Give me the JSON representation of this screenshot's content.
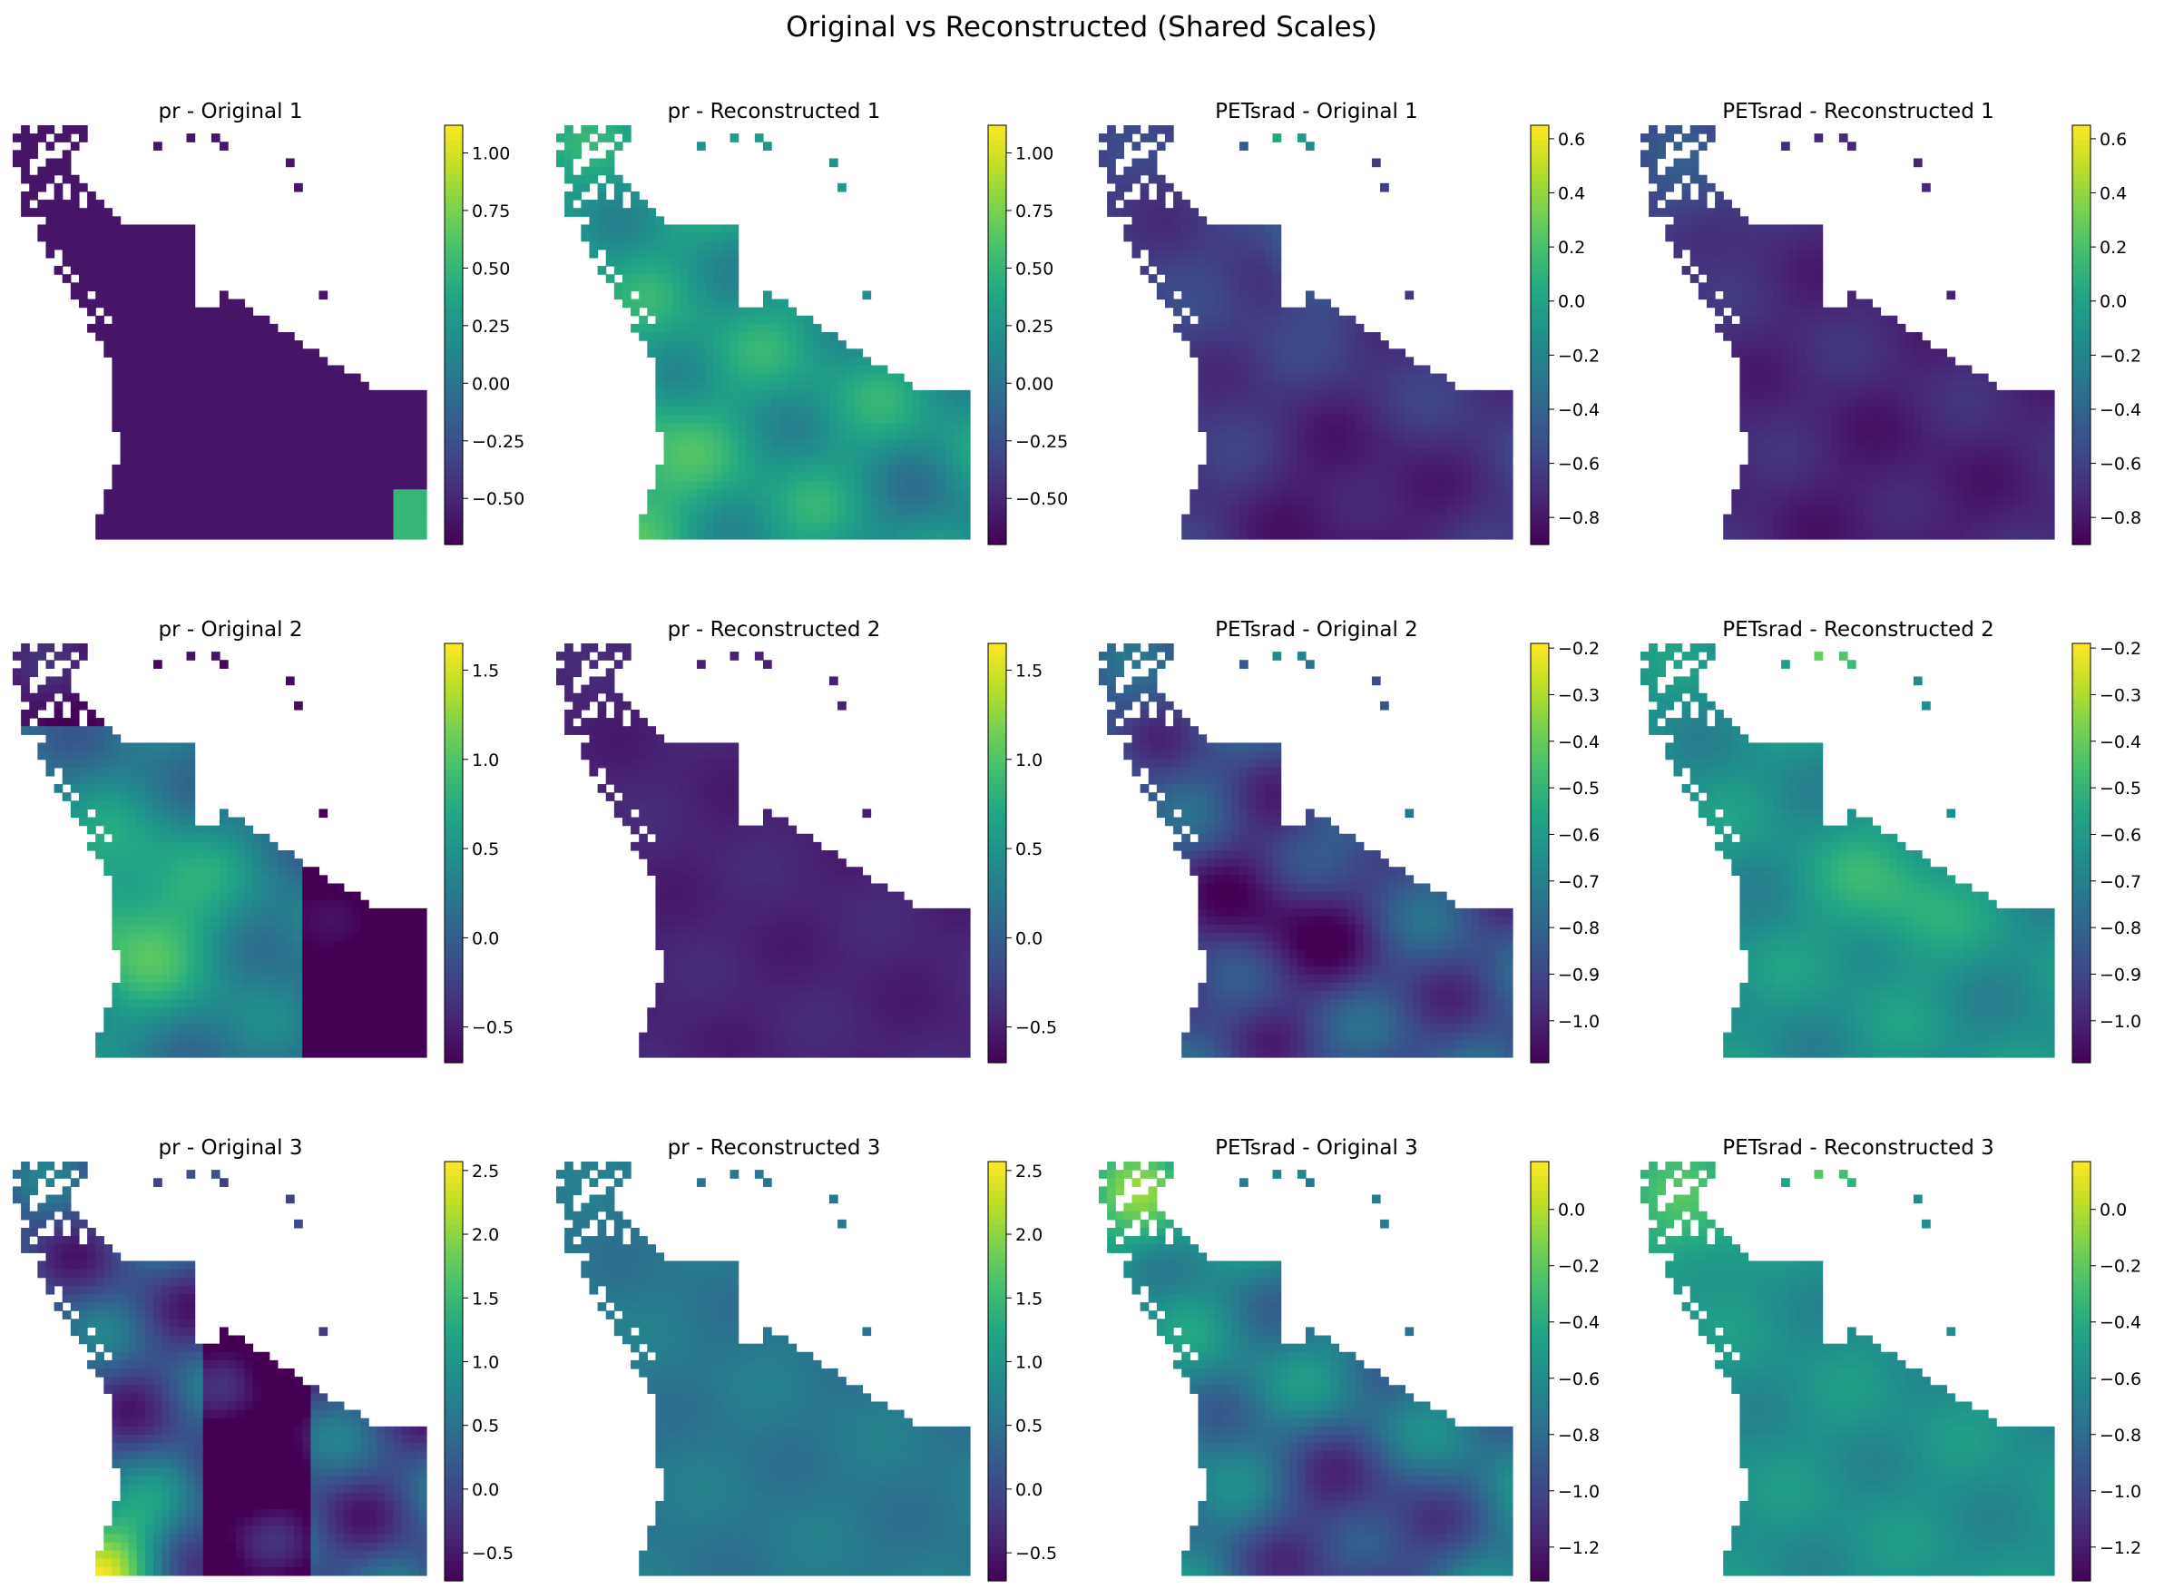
{
  "figure": {
    "suptitle": "Original vs Reconstructed (Shared Scales)"
  },
  "chart_data": [
    {
      "type": "heatmap",
      "variable": "pr",
      "kind": "original",
      "sample": 1,
      "title": "pr - Original 1",
      "colormap": "viridis",
      "vmin": -0.7,
      "vmax": 1.12,
      "colorbar_ticks": [
        -0.5,
        -0.25,
        0.0,
        0.25,
        0.5,
        0.75,
        1.0
      ],
      "tick_labels": [
        "−0.50",
        "−0.25",
        "0.00",
        "0.25",
        "0.50",
        "0.75",
        "1.00"
      ],
      "field": "pr_o1"
    },
    {
      "type": "heatmap",
      "variable": "pr",
      "kind": "reconstructed",
      "sample": 1,
      "title": "pr - Reconstructed 1",
      "colormap": "viridis",
      "vmin": -0.7,
      "vmax": 1.12,
      "colorbar_ticks": [
        -0.5,
        -0.25,
        0.0,
        0.25,
        0.5,
        0.75,
        1.0
      ],
      "tick_labels": [
        "−0.50",
        "−0.25",
        "0.00",
        "0.25",
        "0.50",
        "0.75",
        "1.00"
      ],
      "field": "pr_r1"
    },
    {
      "type": "heatmap",
      "variable": "PETsrad",
      "kind": "original",
      "sample": 1,
      "title": "PETsrad - Original 1",
      "colormap": "viridis",
      "vmin": -0.9,
      "vmax": 0.65,
      "colorbar_ticks": [
        -0.8,
        -0.6,
        -0.4,
        -0.2,
        0.0,
        0.2,
        0.4,
        0.6
      ],
      "tick_labels": [
        "−0.8",
        "−0.6",
        "−0.4",
        "−0.2",
        "0.0",
        "0.2",
        "0.4",
        "0.6"
      ],
      "field": "pet_o1"
    },
    {
      "type": "heatmap",
      "variable": "PETsrad",
      "kind": "reconstructed",
      "sample": 1,
      "title": "PETsrad - Reconstructed 1",
      "colormap": "viridis",
      "vmin": -0.9,
      "vmax": 0.65,
      "colorbar_ticks": [
        -0.8,
        -0.6,
        -0.4,
        -0.2,
        0.0,
        0.2,
        0.4,
        0.6
      ],
      "tick_labels": [
        "−0.8",
        "−0.6",
        "−0.4",
        "−0.2",
        "0.0",
        "0.2",
        "0.4",
        "0.6"
      ],
      "field": "pet_r1"
    },
    {
      "type": "heatmap",
      "variable": "pr",
      "kind": "original",
      "sample": 2,
      "title": "pr - Original 2",
      "colormap": "viridis",
      "vmin": -0.7,
      "vmax": 1.65,
      "colorbar_ticks": [
        -0.5,
        0.0,
        0.5,
        1.0,
        1.5
      ],
      "tick_labels": [
        "−0.5",
        "0.0",
        "0.5",
        "1.0",
        "1.5"
      ],
      "field": "pr_o2"
    },
    {
      "type": "heatmap",
      "variable": "pr",
      "kind": "reconstructed",
      "sample": 2,
      "title": "pr - Reconstructed 2",
      "colormap": "viridis",
      "vmin": -0.7,
      "vmax": 1.65,
      "colorbar_ticks": [
        -0.5,
        0.0,
        0.5,
        1.0,
        1.5
      ],
      "tick_labels": [
        "−0.5",
        "0.0",
        "0.5",
        "1.0",
        "1.5"
      ],
      "field": "pr_r2"
    },
    {
      "type": "heatmap",
      "variable": "PETsrad",
      "kind": "original",
      "sample": 2,
      "title": "PETsrad - Original 2",
      "colormap": "viridis",
      "vmin": -1.09,
      "vmax": -0.19,
      "colorbar_ticks": [
        -1.0,
        -0.9,
        -0.8,
        -0.7,
        -0.6,
        -0.5,
        -0.4,
        -0.3,
        -0.2
      ],
      "tick_labels": [
        "−1.0",
        "−0.9",
        "−0.8",
        "−0.7",
        "−0.6",
        "−0.5",
        "−0.4",
        "−0.3",
        "−0.2"
      ],
      "field": "pet_o2"
    },
    {
      "type": "heatmap",
      "variable": "PETsrad",
      "kind": "reconstructed",
      "sample": 2,
      "title": "PETsrad - Reconstructed 2",
      "colormap": "viridis",
      "vmin": -1.09,
      "vmax": -0.19,
      "colorbar_ticks": [
        -1.0,
        -0.9,
        -0.8,
        -0.7,
        -0.6,
        -0.5,
        -0.4,
        -0.3,
        -0.2
      ],
      "tick_labels": [
        "−1.0",
        "−0.9",
        "−0.8",
        "−0.7",
        "−0.6",
        "−0.5",
        "−0.4",
        "−0.3",
        "−0.2"
      ],
      "field": "pet_r2"
    },
    {
      "type": "heatmap",
      "variable": "pr",
      "kind": "original",
      "sample": 3,
      "title": "pr - Original 3",
      "colormap": "viridis",
      "vmin": -0.72,
      "vmax": 2.57,
      "colorbar_ticks": [
        -0.5,
        0.0,
        0.5,
        1.0,
        1.5,
        2.0,
        2.5
      ],
      "tick_labels": [
        "−0.5",
        "0.0",
        "0.5",
        "1.0",
        "1.5",
        "2.0",
        "2.5"
      ],
      "field": "pr_o3"
    },
    {
      "type": "heatmap",
      "variable": "pr",
      "kind": "reconstructed",
      "sample": 3,
      "title": "pr - Reconstructed 3",
      "colormap": "viridis",
      "vmin": -0.72,
      "vmax": 2.57,
      "colorbar_ticks": [
        -0.5,
        0.0,
        0.5,
        1.0,
        1.5,
        2.0,
        2.5
      ],
      "tick_labels": [
        "−0.5",
        "0.0",
        "0.5",
        "1.0",
        "1.5",
        "2.0",
        "2.5"
      ],
      "field": "pr_r3"
    },
    {
      "type": "heatmap",
      "variable": "PETsrad",
      "kind": "original",
      "sample": 3,
      "title": "PETsrad - Original 3",
      "colormap": "viridis",
      "vmin": -1.32,
      "vmax": 0.17,
      "colorbar_ticks": [
        -1.2,
        -1.0,
        -0.8,
        -0.6,
        -0.4,
        -0.2,
        0.0
      ],
      "tick_labels": [
        "−1.2",
        "−1.0",
        "−0.8",
        "−0.6",
        "−0.4",
        "−0.2",
        "0.0"
      ],
      "field": "pet_o3"
    },
    {
      "type": "heatmap",
      "variable": "PETsrad",
      "kind": "reconstructed",
      "sample": 3,
      "title": "PETsrad - Reconstructed 3",
      "colormap": "viridis",
      "vmin": -1.32,
      "vmax": 0.17,
      "colorbar_ticks": [
        -1.2,
        -1.0,
        -0.8,
        -0.6,
        -0.4,
        -0.2,
        0.0
      ],
      "tick_labels": [
        "−1.2",
        "−1.0",
        "−0.8",
        "−0.6",
        "−0.4",
        "−0.2",
        "0.0"
      ],
      "field": "pet_r3"
    }
  ]
}
